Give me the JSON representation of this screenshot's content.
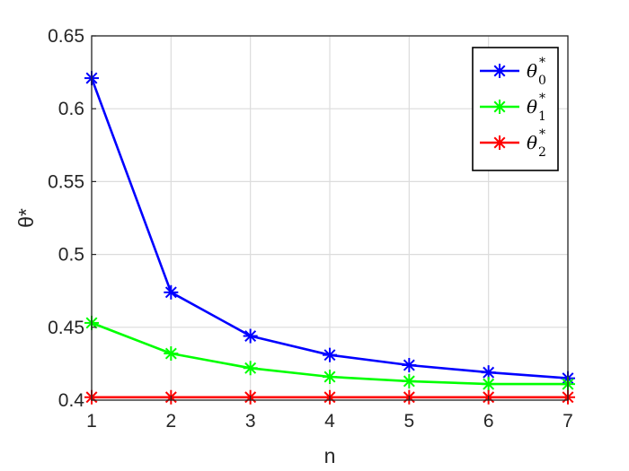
{
  "chart_data": {
    "type": "line",
    "xlabel": "n",
    "ylabel": "θ*",
    "x": [
      1,
      2,
      3,
      4,
      5,
      6,
      7
    ],
    "xlim": [
      1,
      7
    ],
    "ylim": [
      0.4,
      0.65
    ],
    "xticks": [
      "1",
      "2",
      "3",
      "4",
      "5",
      "6",
      "7"
    ],
    "yticks": [
      "0.4",
      "0.45",
      "0.5",
      "0.55",
      "0.6",
      "0.65"
    ],
    "grid": true,
    "legend_position": "top-right",
    "series": [
      {
        "name": "θ0*",
        "base": "θ",
        "sub": "0",
        "sup": "*",
        "color": "#0000ff",
        "values": [
          0.621,
          0.474,
          0.444,
          0.431,
          0.424,
          0.419,
          0.415
        ]
      },
      {
        "name": "θ1*",
        "base": "θ",
        "sub": "1",
        "sup": "*",
        "color": "#00ff00",
        "values": [
          0.453,
          0.432,
          0.422,
          0.416,
          0.413,
          0.411,
          0.411
        ]
      },
      {
        "name": "θ2*",
        "base": "θ",
        "sub": "2",
        "sup": "*",
        "color": "#ff0000",
        "values": [
          0.402,
          0.402,
          0.402,
          0.402,
          0.402,
          0.402,
          0.402
        ]
      }
    ]
  }
}
